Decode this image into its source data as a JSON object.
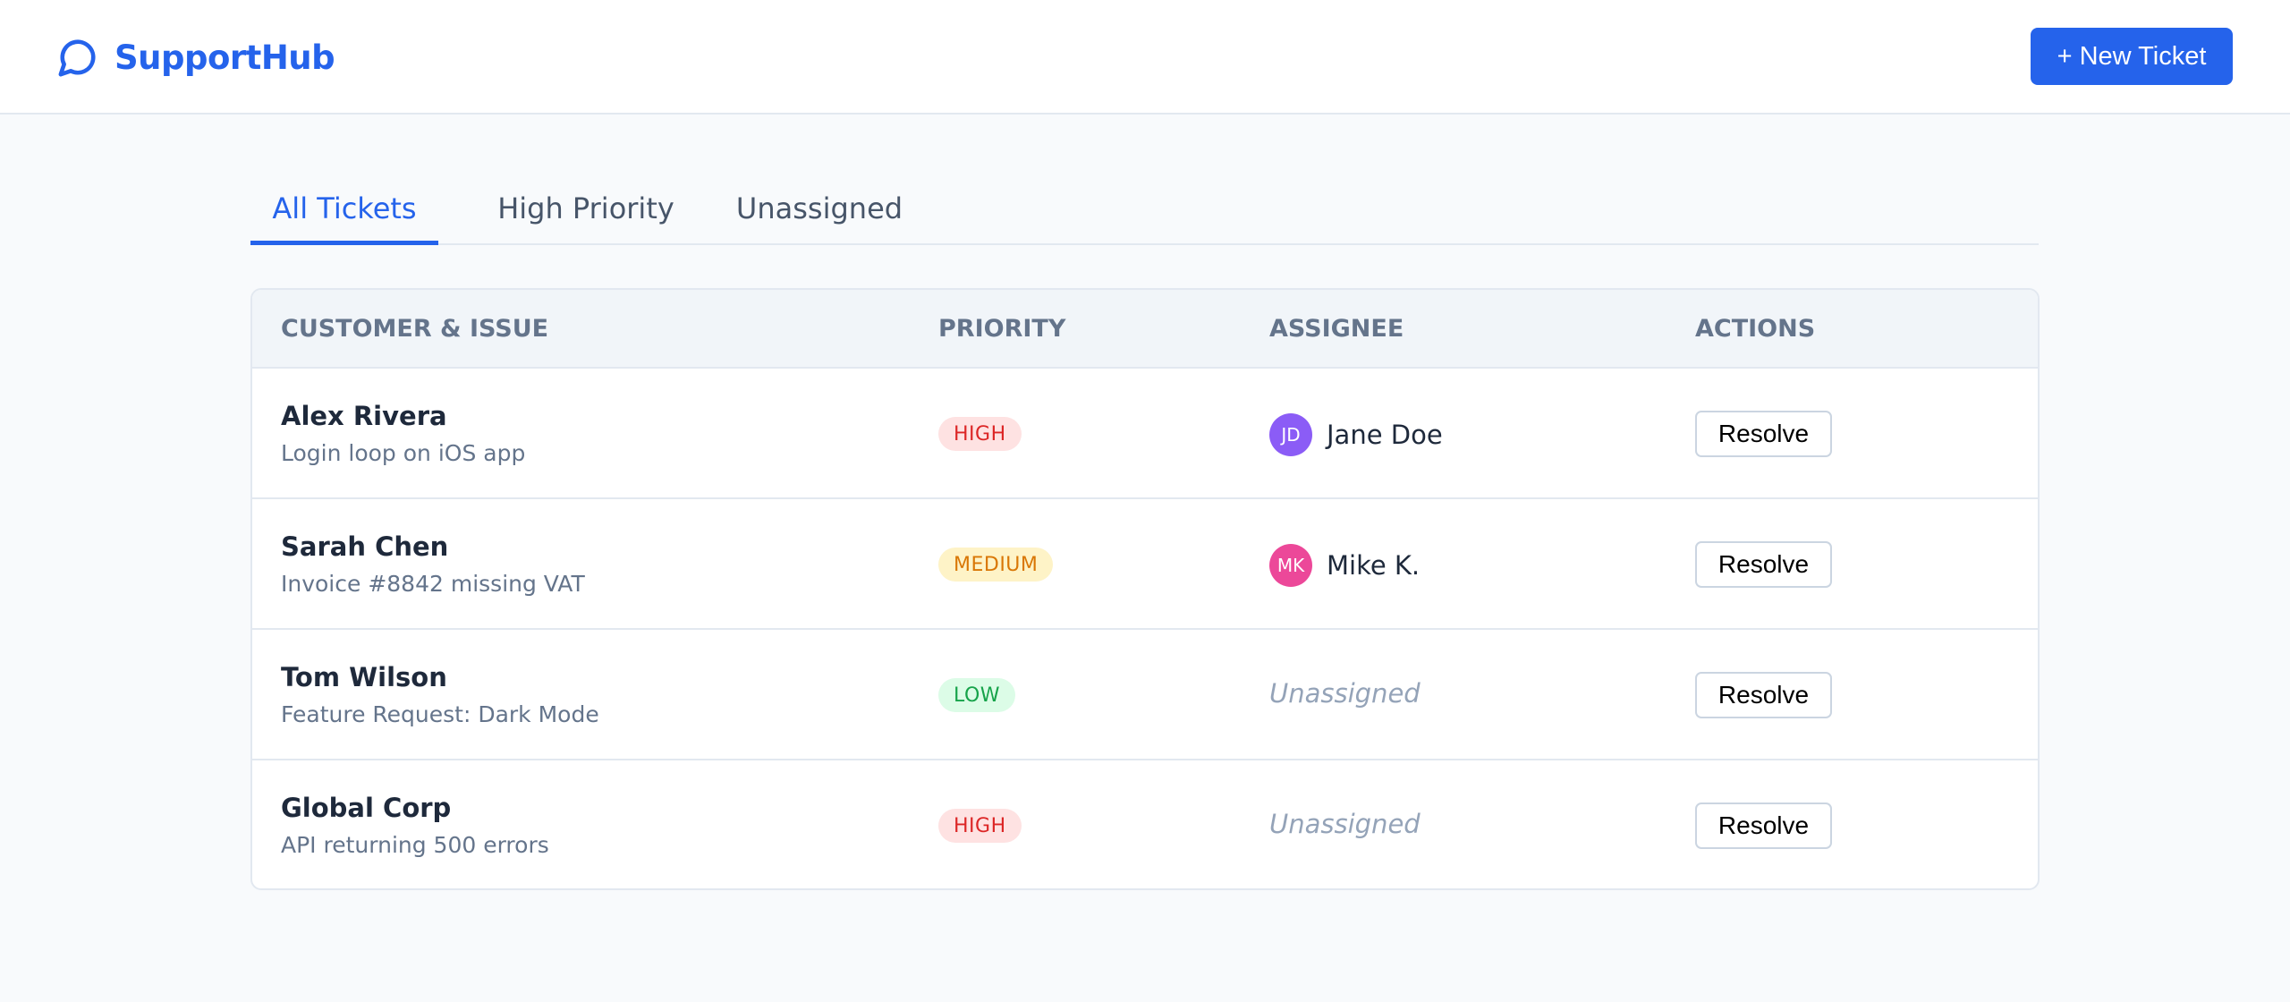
{
  "app": {
    "title": "SupportHub",
    "logo_icon": "chat-bubble-icon",
    "brand_color": "#2563eb"
  },
  "header": {
    "new_ticket_label": "+ New Ticket"
  },
  "tabs": [
    {
      "label": "All Tickets",
      "active": true
    },
    {
      "label": "High Priority",
      "active": false
    },
    {
      "label": "Unassigned",
      "active": false
    }
  ],
  "table": {
    "columns": [
      "CUSTOMER & ISSUE",
      "PRIORITY",
      "ASSIGNEE",
      "ACTIONS"
    ],
    "rows": [
      {
        "customer": "Alex Rivera",
        "issue": "Login loop on iOS app",
        "priority": "HIGH",
        "assignee": {
          "initials": "JD",
          "name": "Jane Doe",
          "avatar_color": "#8b5cf6"
        },
        "action": "Resolve"
      },
      {
        "customer": "Sarah Chen",
        "issue": "Invoice #8842 missing VAT",
        "priority": "MEDIUM",
        "assignee": {
          "initials": "MK",
          "name": "Mike K.",
          "avatar_color": "#ec4899"
        },
        "action": "Resolve"
      },
      {
        "customer": "Tom Wilson",
        "issue": "Feature Request: Dark Mode",
        "priority": "LOW",
        "assignee": {
          "unassigned": "Unassigned"
        },
        "action": "Resolve"
      },
      {
        "customer": "Global Corp",
        "issue": "API returning 500 errors",
        "priority": "HIGH",
        "assignee": {
          "unassigned": "Unassigned"
        },
        "action": "Resolve"
      }
    ]
  },
  "colors": {
    "priority_high": "#dc2626",
    "priority_medium": "#d97706",
    "priority_low": "#16a34a"
  }
}
